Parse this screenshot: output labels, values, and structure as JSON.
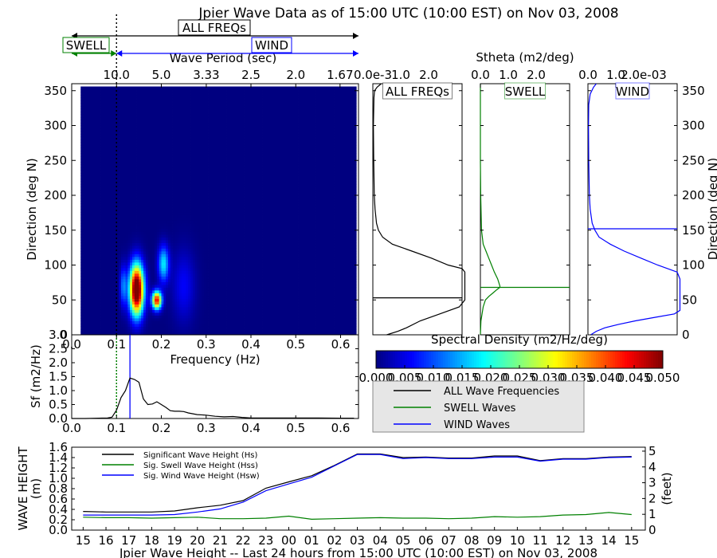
{
  "title": "Jpier Wave Data as of 15:00 UTC (10:00 EST) on Nov 03, 2008",
  "colors": {
    "all": "#000000",
    "swell": "#008000",
    "wind": "#0000ff"
  },
  "band_indicator": {
    "all_label": "ALL FREQs",
    "swell_label": "SWELL",
    "wind_label": "WIND",
    "separator_frequency_hz": 0.1
  },
  "chart_data": [
    {
      "id": "directional_spectrum",
      "type": "heatmap",
      "xlabel": "Frequency (Hz)",
      "ylabel": "Direction (deg N)",
      "top_axis_label": "Wave Period (sec)",
      "xlim": [
        0.0,
        0.64
      ],
      "ylim": [
        0,
        360
      ],
      "top_ticks": [
        "10.0",
        "5.0",
        "3.33",
        "2.5",
        "2.0",
        "1.67"
      ],
      "y_ticks": [
        0,
        50,
        100,
        150,
        200,
        250,
        300,
        350
      ],
      "colorbar": {
        "label": "Spectral Density (m2/Hz/deg)",
        "range": [
          0.0,
          0.05
        ],
        "ticks": [
          "0.000",
          "0.005",
          "0.010",
          "0.015",
          "0.020",
          "0.025",
          "0.030",
          "0.035",
          "0.040",
          "0.045",
          "0.050"
        ]
      },
      "blobs": [
        {
          "f": 0.145,
          "dir": 65,
          "sf": 2.2,
          "sd": 25,
          "amp": 0.06
        },
        {
          "f": 0.19,
          "dir": 50,
          "sf": 1.5,
          "sd": 9,
          "amp": 0.045
        },
        {
          "f": 0.205,
          "dir": 102,
          "sf": 1.7,
          "sd": 18,
          "amp": 0.018
        },
        {
          "f": 0.115,
          "dir": 70,
          "sf": 1.0,
          "sd": 20,
          "amp": 0.012
        },
        {
          "f": 0.25,
          "dir": 70,
          "sf": 3.5,
          "sd": 35,
          "amp": 0.006
        }
      ]
    },
    {
      "id": "frequency_spectrum",
      "type": "line",
      "xlabel": "Frequency (Hz)",
      "ylabel": "Sf (m2/Hz)",
      "xlim": [
        0.0,
        0.64
      ],
      "ylim": [
        0.0,
        3.0
      ],
      "x_ticks": [
        "0.0",
        "0.1",
        "0.2",
        "0.3",
        "0.4",
        "0.5",
        "0.6"
      ],
      "y_ticks": [
        "0.0",
        "0.5",
        "1.0",
        "1.5",
        "2.0",
        "2.5",
        "3.0"
      ],
      "swell_marker_hz": 0.1,
      "wind_marker_hz": 0.13,
      "x": [
        0.0,
        0.03,
        0.06,
        0.08,
        0.09,
        0.1,
        0.11,
        0.12,
        0.13,
        0.14,
        0.15,
        0.16,
        0.17,
        0.18,
        0.19,
        0.2,
        0.21,
        0.22,
        0.23,
        0.24,
        0.25,
        0.26,
        0.28,
        0.3,
        0.32,
        0.34,
        0.36,
        0.38,
        0.4,
        0.45,
        0.5,
        0.55,
        0.6,
        0.63
      ],
      "values": [
        0.0,
        0.0,
        0.01,
        0.02,
        0.05,
        0.3,
        0.75,
        1.0,
        1.45,
        1.4,
        1.3,
        0.7,
        0.5,
        0.52,
        0.6,
        0.5,
        0.4,
        0.28,
        0.26,
        0.26,
        0.25,
        0.2,
        0.14,
        0.12,
        0.08,
        0.06,
        0.07,
        0.04,
        0.02,
        0.02,
        0.02,
        0.02,
        0.01,
        0.01
      ]
    },
    {
      "id": "stheta_panels",
      "type": "line",
      "top_axis_label": "Stheta (m2/deg)",
      "ylabel_right": "Direction (deg N)",
      "ylim": [
        0,
        360
      ],
      "y_ticks": [
        0,
        50,
        100,
        150,
        200,
        250,
        300,
        350
      ],
      "panels": [
        {
          "name": "ALL FREQs",
          "color": "#000000",
          "xlim": [
            0,
            3.2
          ],
          "tick_labels": [
            "0.0e-3",
            "1.0",
            "2.0"
          ],
          "tick_values": [
            0,
            1,
            2
          ],
          "mean_direction": 53,
          "dir": [
            0,
            5,
            10,
            20,
            30,
            40,
            50,
            52,
            55,
            60,
            70,
            80,
            90,
            95,
            100,
            110,
            120,
            130,
            140,
            150,
            160,
            180,
            200,
            250,
            300,
            340,
            350,
            355,
            360
          ],
          "values": [
            0.5,
            0.9,
            1.2,
            1.7,
            2.4,
            3.1,
            3.3,
            3.3,
            3.3,
            3.3,
            3.3,
            3.3,
            3.3,
            3.2,
            2.7,
            2.1,
            1.4,
            0.7,
            0.35,
            0.2,
            0.13,
            0.08,
            0.05,
            0.03,
            0.02,
            0.04,
            0.06,
            0.15,
            0.3
          ]
        },
        {
          "name": "SWELL",
          "color": "#008000",
          "xlim": [
            0,
            3.2
          ],
          "tick_labels": [
            "0.0",
            "1.0",
            "2.0"
          ],
          "tick_values": [
            0,
            1,
            2
          ],
          "mean_direction": 68,
          "dir": [
            0,
            20,
            40,
            50,
            55,
            60,
            65,
            68,
            70,
            80,
            90,
            100,
            110,
            120,
            130,
            150,
            200,
            250,
            300,
            360
          ],
          "values": [
            0.0,
            0.02,
            0.1,
            0.18,
            0.3,
            0.45,
            0.6,
            0.7,
            0.7,
            0.62,
            0.5,
            0.4,
            0.3,
            0.2,
            0.1,
            0.04,
            0.01,
            0.0,
            0.0,
            0.0
          ]
        },
        {
          "name": "WIND",
          "color": "#0000ff",
          "xlim": [
            0,
            3.2
          ],
          "tick_labels": [
            "0.0",
            "1.0",
            "2.0e-03"
          ],
          "tick_values": [
            0,
            1,
            2
          ],
          "mean_direction": 152,
          "dir": [
            0,
            5,
            10,
            15,
            20,
            25,
            30,
            35,
            40,
            50,
            60,
            70,
            80,
            90,
            100,
            110,
            120,
            130,
            140,
            150,
            160,
            180,
            200,
            250,
            300,
            330,
            345,
            355,
            360
          ],
          "values": [
            0.1,
            0.3,
            0.6,
            1.1,
            1.7,
            2.4,
            3.1,
            3.3,
            3.3,
            3.3,
            3.3,
            3.3,
            3.3,
            3.2,
            2.5,
            1.9,
            1.3,
            0.8,
            0.4,
            0.25,
            0.15,
            0.08,
            0.05,
            0.03,
            0.02,
            0.03,
            0.08,
            0.2,
            0.3
          ]
        }
      ]
    },
    {
      "id": "legend",
      "type": "line",
      "series": [
        {
          "name": "ALL Wave Frequencies",
          "color": "#000000"
        },
        {
          "name": "SWELL Waves",
          "color": "#008000"
        },
        {
          "name": "WIND Waves",
          "color": "#0000ff"
        }
      ]
    },
    {
      "id": "wave_height",
      "type": "line",
      "title": "Jpier Wave Height -- Last 24 hours from 15:00 UTC (10:00 EST) on Nov 03, 2008",
      "ylabel": "WAVE HEIGHT(m)",
      "ylabel_right": "(feet)",
      "ylim": [
        0.0,
        1.6
      ],
      "y_ticks": [
        "0.0",
        "0.2",
        "0.4",
        "0.6",
        "0.8",
        "1.0",
        "1.2",
        "1.4",
        "1.6"
      ],
      "ylim_right": [
        0,
        5.25
      ],
      "y_ticks_right": [
        "0",
        "1",
        "2",
        "3",
        "4",
        "5"
      ],
      "categories": [
        "15",
        "16",
        "17",
        "18",
        "19",
        "20",
        "21",
        "22",
        "23",
        "00",
        "01",
        "02",
        "03",
        "04",
        "05",
        "06",
        "07",
        "08",
        "09",
        "10",
        "11",
        "12",
        "13",
        "14",
        "15"
      ],
      "series": [
        {
          "name": "Significant Wave Height (Hs)",
          "color": "#000000",
          "values": [
            0.36,
            0.35,
            0.35,
            0.35,
            0.37,
            0.43,
            0.48,
            0.57,
            0.81,
            0.93,
            1.05,
            1.25,
            1.47,
            1.47,
            1.4,
            1.41,
            1.39,
            1.39,
            1.43,
            1.43,
            1.34,
            1.38,
            1.38,
            1.41,
            1.42
          ]
        },
        {
          "name": "Sig. Swell Wave Height (Hss)",
          "color": "#008000",
          "values": [
            0.25,
            0.24,
            0.24,
            0.23,
            0.24,
            0.25,
            0.22,
            0.22,
            0.23,
            0.27,
            0.21,
            0.22,
            0.23,
            0.24,
            0.23,
            0.23,
            0.22,
            0.23,
            0.26,
            0.25,
            0.26,
            0.29,
            0.3,
            0.34,
            0.3
          ]
        },
        {
          "name": "Sig. Wind Wave Height (Hsw)",
          "color": "#0000ff",
          "values": [
            0.29,
            0.29,
            0.29,
            0.29,
            0.3,
            0.35,
            0.41,
            0.54,
            0.76,
            0.89,
            1.02,
            1.24,
            1.46,
            1.46,
            1.38,
            1.4,
            1.38,
            1.38,
            1.41,
            1.41,
            1.33,
            1.37,
            1.37,
            1.4,
            1.41
          ]
        }
      ]
    }
  ]
}
